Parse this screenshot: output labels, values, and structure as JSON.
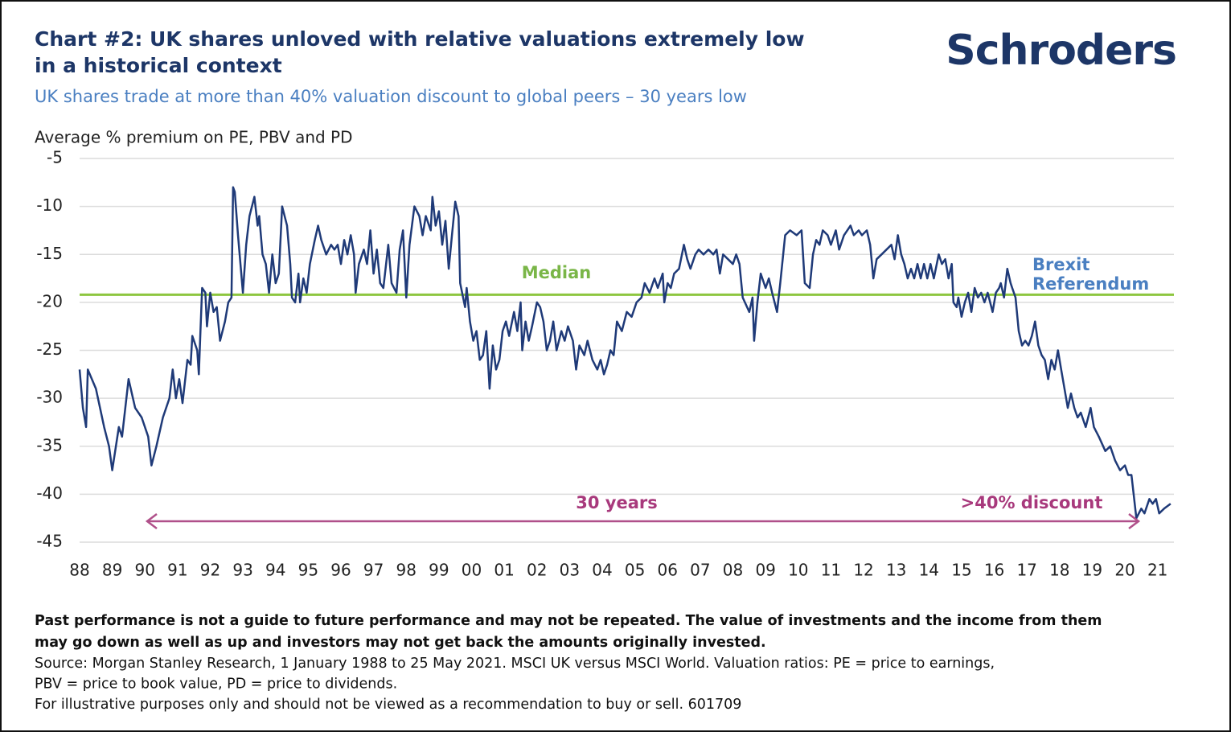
{
  "chart_data": {
    "type": "line",
    "title": [
      "Chart #2: UK shares unloved with relative valuations extremely low",
      "in a historical context"
    ],
    "subtitle": "UK shares trade at more than 40% valuation discount to global peers – 30 years low",
    "logo": "Schroders",
    "y_label": "Average % premium on PE, PBV and PD",
    "xlim": [
      1988,
      2021.5
    ],
    "xticks": [
      {
        "value": 1988,
        "label": "88"
      },
      {
        "value": 1989,
        "label": "89"
      },
      {
        "value": 1990,
        "label": "90"
      },
      {
        "value": 1991,
        "label": "91"
      },
      {
        "value": 1992,
        "label": "92"
      },
      {
        "value": 1993,
        "label": "93"
      },
      {
        "value": 1994,
        "label": "94"
      },
      {
        "value": 1995,
        "label": "95"
      },
      {
        "value": 1996,
        "label": "96"
      },
      {
        "value": 1997,
        "label": "97"
      },
      {
        "value": 1998,
        "label": "98"
      },
      {
        "value": 1999,
        "label": "99"
      },
      {
        "value": 2000,
        "label": "00"
      },
      {
        "value": 2001,
        "label": "01"
      },
      {
        "value": 2002,
        "label": "02"
      },
      {
        "value": 2003,
        "label": "03"
      },
      {
        "value": 2004,
        "label": "04"
      },
      {
        "value": 2005,
        "label": "05"
      },
      {
        "value": 2006,
        "label": "06"
      },
      {
        "value": 2007,
        "label": "07"
      },
      {
        "value": 2008,
        "label": "08"
      },
      {
        "value": 2009,
        "label": "09"
      },
      {
        "value": 2010,
        "label": "10"
      },
      {
        "value": 2011,
        "label": "11"
      },
      {
        "value": 2012,
        "label": "12"
      },
      {
        "value": 2013,
        "label": "13"
      },
      {
        "value": 2014,
        "label": "14"
      },
      {
        "value": 2015,
        "label": "15"
      },
      {
        "value": 2016,
        "label": "16"
      },
      {
        "value": 2017,
        "label": "17"
      },
      {
        "value": 2018,
        "label": "18"
      },
      {
        "value": 2019,
        "label": "19"
      },
      {
        "value": 2020,
        "label": "20"
      },
      {
        "value": 2021,
        "label": "21"
      }
    ],
    "ylim": [
      -45,
      -5
    ],
    "yticks": [
      -5,
      -10,
      -15,
      -20,
      -25,
      -30,
      -35,
      -40,
      -45
    ],
    "grid": true,
    "x": [
      1988.0,
      1988.1,
      1988.2,
      1988.25,
      1988.5,
      1988.75,
      1988.9,
      1989.0,
      1989.2,
      1989.3,
      1989.5,
      1989.7,
      1989.9,
      1990.1,
      1990.2,
      1990.35,
      1990.55,
      1990.75,
      1990.85,
      1990.95,
      1991.05,
      1991.15,
      1991.3,
      1991.4,
      1991.45,
      1991.6,
      1991.65,
      1991.7,
      1991.75,
      1991.85,
      1991.9,
      1992.0,
      1992.1,
      1992.2,
      1992.3,
      1992.45,
      1992.55,
      1992.65,
      1992.7,
      1992.75,
      1992.85,
      1993.0,
      1993.1,
      1993.2,
      1993.35,
      1993.45,
      1993.5,
      1993.6,
      1993.7,
      1993.8,
      1993.9,
      1994.0,
      1994.1,
      1994.2,
      1994.35,
      1994.45,
      1994.5,
      1994.6,
      1994.7,
      1994.75,
      1994.85,
      1994.95,
      1995.05,
      1995.2,
      1995.3,
      1995.4,
      1995.55,
      1995.7,
      1995.8,
      1995.9,
      1996.0,
      1996.1,
      1996.2,
      1996.3,
      1996.4,
      1996.45,
      1996.55,
      1996.7,
      1996.8,
      1996.9,
      1997.0,
      1997.1,
      1997.2,
      1997.3,
      1997.45,
      1997.55,
      1997.7,
      1997.8,
      1997.9,
      1998.0,
      1998.1,
      1998.25,
      1998.4,
      1998.5,
      1998.6,
      1998.75,
      1998.8,
      1998.9,
      1999.0,
      1999.1,
      1999.2,
      1999.3,
      1999.4,
      1999.5,
      1999.6,
      1999.65,
      1999.8,
      1999.85,
      1999.95,
      2000.05,
      2000.15,
      2000.25,
      2000.35,
      2000.45,
      2000.55,
      2000.65,
      2000.75,
      2000.85,
      2000.95,
      2001.05,
      2001.15,
      2001.3,
      2001.4,
      2001.5,
      2001.55,
      2001.65,
      2001.75,
      2001.85,
      2002.0,
      2002.1,
      2002.2,
      2002.3,
      2002.4,
      2002.5,
      2002.6,
      2002.75,
      2002.85,
      2002.95,
      2003.1,
      2003.2,
      2003.3,
      2003.45,
      2003.55,
      2003.7,
      2003.85,
      2003.95,
      2004.05,
      2004.15,
      2004.25,
      2004.35,
      2004.45,
      2004.6,
      2004.75,
      2004.9,
      2005.05,
      2005.2,
      2005.3,
      2005.45,
      2005.6,
      2005.7,
      2005.85,
      2005.9,
      2006.0,
      2006.1,
      2006.2,
      2006.35,
      2006.5,
      2006.6,
      2006.7,
      2006.85,
      2006.95,
      2007.1,
      2007.25,
      2007.4,
      2007.5,
      2007.6,
      2007.7,
      2007.85,
      2008.0,
      2008.1,
      2008.2,
      2008.3,
      2008.5,
      2008.6,
      2008.65,
      2008.75,
      2008.85,
      2009.0,
      2009.1,
      2009.2,
      2009.35,
      2009.45,
      2009.6,
      2009.75,
      2009.95,
      2010.1,
      2010.2,
      2010.35,
      2010.45,
      2010.55,
      2010.65,
      2010.75,
      2010.9,
      2011.0,
      2011.15,
      2011.25,
      2011.4,
      2011.6,
      2011.7,
      2011.85,
      2011.95,
      2012.1,
      2012.2,
      2012.3,
      2012.4,
      2012.55,
      2012.7,
      2012.85,
      2012.95,
      2013.05,
      2013.15,
      2013.25,
      2013.35,
      2013.45,
      2013.55,
      2013.65,
      2013.75,
      2013.85,
      2013.95,
      2014.05,
      2014.15,
      2014.3,
      2014.4,
      2014.5,
      2014.6,
      2014.7,
      2014.75,
      2014.85,
      2014.9,
      2015.0,
      2015.1,
      2015.2,
      2015.3,
      2015.4,
      2015.5,
      2015.6,
      2015.7,
      2015.8,
      2015.95,
      2016.05,
      2016.15,
      2016.2,
      2016.3,
      2016.4,
      2016.5,
      2016.55,
      2016.65,
      2016.75,
      2016.85,
      2016.95,
      2017.05,
      2017.15,
      2017.25,
      2017.35,
      2017.45,
      2017.55,
      2017.65,
      2017.75,
      2017.85,
      2017.95,
      2018.05,
      2018.15,
      2018.25,
      2018.35,
      2018.45,
      2018.55,
      2018.65,
      2018.8,
      2018.95,
      2019.05,
      2019.2,
      2019.4,
      2019.55,
      2019.7,
      2019.85,
      2020.0,
      2020.1,
      2020.2,
      2020.35,
      2020.5,
      2020.6,
      2020.75,
      2020.85,
      2020.95,
      2021.05,
      2021.2,
      2021.4
    ],
    "series": [
      {
        "name": "Average % premium on PE, PBV and PD",
        "color": "#1f3a78",
        "values": [
          -27,
          -31,
          -33,
          -27,
          -29,
          -33,
          -35,
          -37.5,
          -33,
          -34,
          -28,
          -31,
          -32,
          -34,
          -37,
          -35,
          -32,
          -30,
          -27,
          -30,
          -28,
          -30.5,
          -26,
          -26.5,
          -23.5,
          -25,
          -27.5,
          -23,
          -18.5,
          -19,
          -22.5,
          -19,
          -21,
          -20.5,
          -24,
          -22,
          -20,
          -19.5,
          -8,
          -8.5,
          -13,
          -19,
          -14,
          -11,
          -9,
          -12,
          -11,
          -15,
          -16,
          -19,
          -15,
          -18,
          -17,
          -10,
          -12,
          -16,
          -19.5,
          -20,
          -17,
          -20,
          -17.5,
          -19,
          -16,
          -13.5,
          -12,
          -13.5,
          -15,
          -14,
          -14.5,
          -14,
          -16,
          -13.5,
          -15,
          -13,
          -15,
          -19,
          -16,
          -14.5,
          -16,
          -12.5,
          -17,
          -14.5,
          -18,
          -18.5,
          -14,
          -18,
          -19,
          -14.5,
          -12.5,
          -19.5,
          -14,
          -10,
          -11,
          -13,
          -11,
          -12.5,
          -9,
          -12,
          -10.5,
          -14,
          -11.5,
          -16.5,
          -13,
          -9.5,
          -11,
          -18,
          -20.5,
          -18.5,
          -22,
          -24,
          -23,
          -26,
          -25.5,
          -23,
          -29,
          -24.5,
          -27,
          -26,
          -23,
          -22,
          -23.5,
          -21,
          -23,
          -20,
          -25,
          -22,
          -24,
          -22.5,
          -20,
          -20.5,
          -22,
          -25,
          -24,
          -22,
          -25,
          -23,
          -24,
          -22.5,
          -24,
          -27,
          -24.5,
          -25.5,
          -24,
          -26,
          -27,
          -26,
          -27.5,
          -26.5,
          -25,
          -25.5,
          -22,
          -23,
          -21,
          -21.5,
          -20,
          -19.5,
          -18,
          -19,
          -17.5,
          -18.5,
          -17,
          -20,
          -18,
          -18.5,
          -17,
          -16.5,
          -14,
          -15.5,
          -16.5,
          -15,
          -14.5,
          -15,
          -14.5,
          -15,
          -14.5,
          -17,
          -15,
          -15.5,
          -16,
          -15,
          -16,
          -19.5,
          -21,
          -19.5,
          -24,
          -20,
          -17,
          -18.5,
          -17.5,
          -19,
          -21,
          -18,
          -13,
          -12.5,
          -13,
          -12.5,
          -18,
          -18.5,
          -15,
          -13.5,
          -14,
          -12.5,
          -13,
          -14,
          -12.5,
          -14.5,
          -13,
          -12,
          -13,
          -12.5,
          -13,
          -12.5,
          -14,
          -17.5,
          -15.5,
          -15,
          -14.5,
          -14,
          -15.5,
          -13,
          -15,
          -16,
          -17.5,
          -16.5,
          -17.5,
          -16,
          -17.5,
          -16,
          -17.5,
          -16,
          -17.5,
          -15,
          -16,
          -15.5,
          -17.5,
          -16,
          -20,
          -20.5,
          -19.5,
          -21.5,
          -20,
          -19,
          -21,
          -18.5,
          -19.5,
          -19,
          -20,
          -19,
          -21,
          -19,
          -18.5,
          -18,
          -19.5,
          -16.5,
          -18,
          -18.5,
          -19.5,
          -23,
          -24.5,
          -24,
          -24.5,
          -23.5,
          -22,
          -24.5,
          -25.5,
          -26,
          -28,
          -26,
          -27,
          -25,
          -27,
          -29,
          -31,
          -29.5,
          -31,
          -32,
          -31.5,
          -33,
          -31,
          -33,
          -34,
          -35.5,
          -35,
          -36.5,
          -37.5,
          -37,
          -38,
          -38,
          -42.5,
          -41.5,
          -42,
          -40.5,
          -41,
          -40.5,
          -42,
          -41.5,
          -41
        ]
      }
    ],
    "median": -19.2,
    "median_color": "#8dc63f",
    "annotations": [
      "Median",
      "Brexit",
      "Referendum",
      "30 years",
      ">40% discount"
    ],
    "footnotes": {
      "bold": [
        "Past performance is not a guide to future performance and may not be repeated. The value of investments and the income from them",
        "may go down as well as up and investors may not get back the amounts originally invested."
      ],
      "normal": [
        "Source: Morgan Stanley Research, 1 January 1988 to 25 May 2021. MSCI UK versus MSCI World. Valuation ratios: PE = price to earnings,",
        "PBV = price to book value, PD = price to dividends.",
        "For illustrative purposes only and should not be viewed as a recommendation to buy or sell. 601709"
      ]
    }
  }
}
